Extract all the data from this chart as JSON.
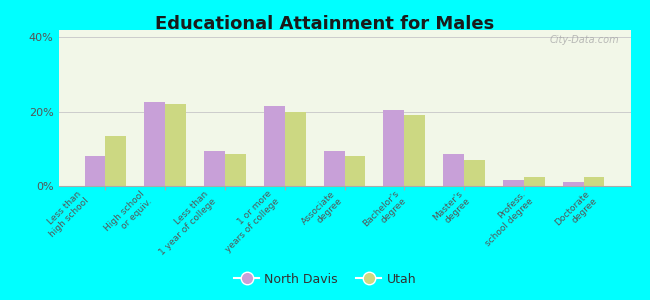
{
  "title": "Educational Attainment for Males",
  "categories": [
    "Less than\nhigh school",
    "High school\nor equiv.",
    "Less than\n1 year of college",
    "1 or more\nyears of college",
    "Associate\ndegree",
    "Bachelor's\ndegree",
    "Master's\ndegree",
    "Profess.\nschool degree",
    "Doctorate\ndegree"
  ],
  "north_davis": [
    8.0,
    22.5,
    9.5,
    21.5,
    9.5,
    20.5,
    8.5,
    1.5,
    1.0
  ],
  "utah": [
    13.5,
    22.0,
    8.5,
    20.0,
    8.0,
    19.0,
    7.0,
    2.5,
    2.5
  ],
  "north_davis_color": "#c8a0d8",
  "utah_color": "#ccd882",
  "bg_outer": "#00ffff",
  "bg_plot": "#f2f7e8",
  "watermark": "City-Data.com",
  "legend_labels": [
    "North Davis",
    "Utah"
  ],
  "yticks": [
    0,
    20,
    40
  ],
  "ylim": [
    0,
    42
  ]
}
